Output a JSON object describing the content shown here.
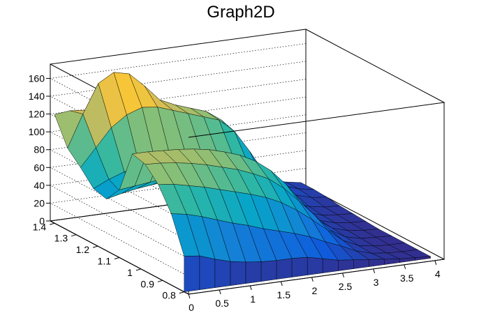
{
  "chart_data": {
    "type": "surface",
    "title": "Graph2D",
    "xlabel": "",
    "ylabel": "",
    "zlabel": "",
    "xlim": [
      0,
      4.15
    ],
    "ylim": [
      0.78,
      1.42
    ],
    "zlim": [
      0,
      176
    ],
    "x_ticks": [
      "0",
      "0.5",
      "1",
      "1.5",
      "2",
      "2.5",
      "3",
      "3.5",
      "4"
    ],
    "y_ticks": [
      "0.8",
      "0.9",
      "1",
      "1.1",
      "1.2",
      "1.3",
      "1.4"
    ],
    "z_ticks": [
      "0",
      "20",
      "40",
      "60",
      "80",
      "100",
      "120",
      "140",
      "160"
    ],
    "grid": true,
    "palette": [
      "#352a87",
      "#0f5cdd",
      "#1481d6",
      "#06a4ca",
      "#2eb7a4",
      "#87bf77",
      "#d1bb59",
      "#fec832",
      "#f9fb0e"
    ],
    "surface_x": [
      0,
      0.25,
      0.5,
      0.75,
      1.0,
      1.25,
      1.5,
      1.75,
      2.0,
      2.25,
      2.5,
      2.75,
      3.0,
      3.25,
      3.5,
      3.75,
      4.0
    ],
    "surface_y": [
      0.8,
      0.86,
      0.92,
      0.98,
      1.04,
      1.1,
      1.16,
      1.22,
      1.28,
      1.34,
      1.4
    ],
    "surface_z": [
      [
        40,
        38,
        32,
        27,
        24,
        22,
        21,
        21,
        20,
        16,
        12,
        10,
        8,
        6,
        4,
        3,
        2
      ],
      [
        80,
        77,
        72,
        66,
        60,
        55,
        49,
        44,
        39,
        33,
        25,
        18,
        10,
        5,
        3,
        2,
        2
      ],
      [
        105,
        103,
        99,
        95,
        90,
        85,
        80,
        74,
        66,
        55,
        42,
        28,
        14,
        6,
        3,
        2,
        2
      ],
      [
        120,
        119,
        117,
        114,
        110,
        105,
        100,
        93,
        85,
        72,
        55,
        37,
        18,
        8,
        4,
        3,
        2
      ],
      [
        124,
        124,
        123,
        122,
        120,
        117,
        112,
        106,
        97,
        84,
        66,
        44,
        22,
        10,
        5,
        3,
        2
      ],
      [
        76,
        78,
        80,
        82,
        85,
        86,
        86,
        85,
        82,
        75,
        62,
        43,
        23,
        11,
        6,
        4,
        3
      ],
      [
        58,
        62,
        65,
        67,
        69,
        70,
        71,
        72,
        71,
        68,
        58,
        42,
        24,
        12,
        7,
        5,
        4
      ],
      [
        62,
        70,
        76,
        80,
        84,
        85,
        86,
        86,
        85,
        80,
        68,
        48,
        28,
        15,
        9,
        6,
        5
      ],
      [
        78,
        98,
        118,
        130,
        136,
        134,
        128,
        122,
        116,
        110,
        95,
        70,
        42,
        24,
        14,
        9,
        7
      ],
      [
        92,
        128,
        160,
        170,
        166,
        150,
        132,
        124,
        118,
        112,
        100,
        76,
        48,
        28,
        17,
        11,
        8
      ],
      [
        122,
        124,
        122,
        112,
        100,
        94,
        90,
        88,
        86,
        84,
        78,
        62,
        42,
        26,
        16,
        11,
        8
      ]
    ]
  }
}
